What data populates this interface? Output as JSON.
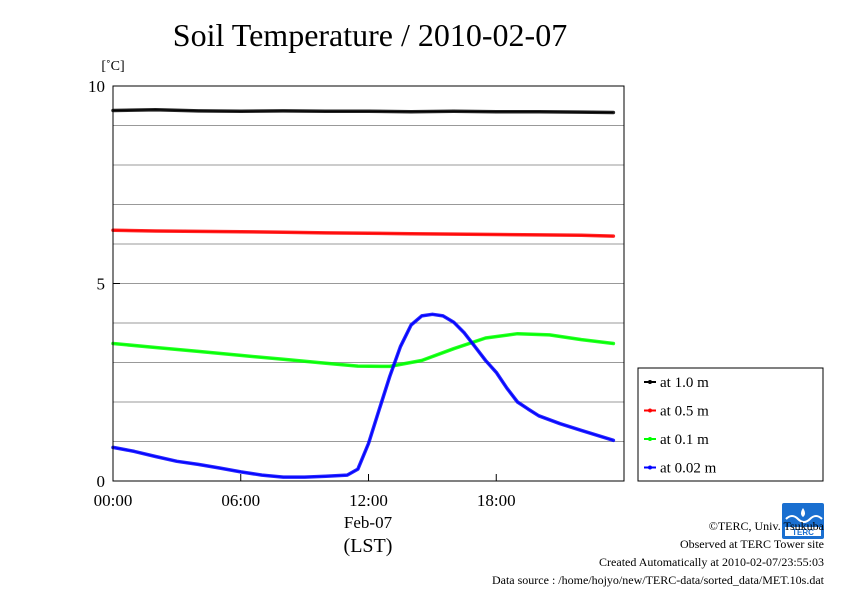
{
  "chart_data": {
    "type": "line",
    "title": "Soil Temperature / 2010-02-07",
    "ylabel": "[˚C]",
    "xlabel": "(LST)",
    "date_label": "Feb-07",
    "ylim": [
      0,
      10
    ],
    "y_ticks": [
      0,
      5,
      10
    ],
    "xlim": [
      0,
      24
    ],
    "x_ticks": [
      0,
      6,
      12,
      18
    ],
    "x_tick_labels": [
      "00:00",
      "06:00",
      "12:00",
      "18:00"
    ],
    "grid": true,
    "legend_placement": "right",
    "series": [
      {
        "name": "at 1.0 m",
        "color": "#000000",
        "x": [
          0,
          2,
          4,
          6,
          8,
          10,
          12,
          14,
          16,
          18,
          20,
          22,
          23.5
        ],
        "y": [
          9.38,
          9.4,
          9.37,
          9.36,
          9.37,
          9.36,
          9.36,
          9.35,
          9.36,
          9.35,
          9.35,
          9.34,
          9.33
        ]
      },
      {
        "name": "at 0.5 m",
        "color": "#ff0000",
        "x": [
          0,
          2,
          4,
          6,
          8,
          10,
          12,
          14,
          16,
          18,
          20,
          22,
          23.5
        ],
        "y": [
          6.35,
          6.33,
          6.32,
          6.31,
          6.3,
          6.28,
          6.27,
          6.26,
          6.25,
          6.24,
          6.23,
          6.22,
          6.2
        ]
      },
      {
        "name": "at 0.1 m",
        "color": "#00ff00",
        "x": [
          0,
          2,
          4,
          6,
          8,
          10,
          11.5,
          13,
          14.5,
          16,
          17.5,
          19,
          20.5,
          22,
          23.5
        ],
        "y": [
          3.48,
          3.38,
          3.28,
          3.18,
          3.08,
          2.98,
          2.91,
          2.9,
          3.05,
          3.35,
          3.62,
          3.73,
          3.7,
          3.58,
          3.48
        ]
      },
      {
        "name": "at 0.02 m",
        "color": "#0000ff",
        "x": [
          0,
          1,
          2,
          3,
          4,
          5,
          6,
          7,
          8,
          9,
          10,
          11,
          11.5,
          12,
          12.5,
          13,
          13.5,
          14,
          14.5,
          15,
          15.5,
          16,
          16.5,
          17,
          17.5,
          18,
          18.5,
          19,
          19.5,
          20,
          21,
          22,
          23.5
        ],
        "y": [
          0.85,
          0.75,
          0.62,
          0.5,
          0.42,
          0.33,
          0.23,
          0.15,
          0.1,
          0.1,
          0.12,
          0.15,
          0.3,
          0.95,
          1.8,
          2.65,
          3.4,
          3.95,
          4.18,
          4.22,
          4.18,
          4.02,
          3.75,
          3.4,
          3.05,
          2.75,
          2.35,
          2.0,
          1.82,
          1.65,
          1.45,
          1.28,
          1.03
        ]
      }
    ]
  },
  "footer": {
    "copyright": "©TERC, Univ. Tsukuba",
    "observed": "Observed at TERC Tower site",
    "created": "Created Automatically at 2010-02-07/23:55:03",
    "source": "Data source : /home/hojyo/new/TERC-data/sorted_data/MET.10s.dat"
  },
  "logo": {
    "text": "TERC",
    "color": "#1a6fd0"
  }
}
